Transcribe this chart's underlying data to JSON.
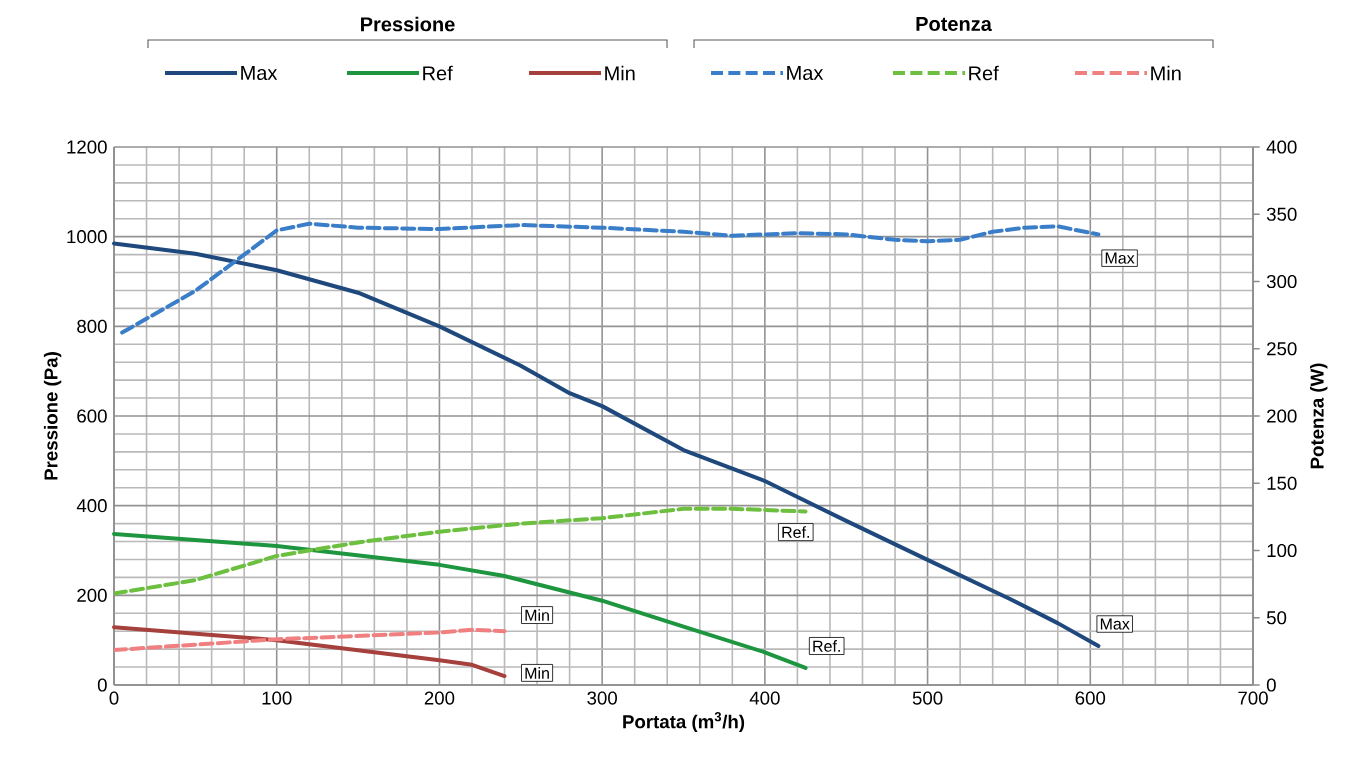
{
  "chart_data": {
    "type": "line",
    "xlabel": "Portata (m$^{3}$/h)",
    "ylabel": "Pressione (Pa)",
    "y2label": "Potenza (W)",
    "xlim": [
      0,
      700
    ],
    "xticks": [
      0,
      100,
      200,
      300,
      400,
      500,
      600,
      700
    ],
    "ylim": [
      0,
      1200
    ],
    "yticks": [
      0,
      200,
      400,
      600,
      800,
      1000,
      1200
    ],
    "y2lim": [
      0,
      400
    ],
    "y2ticks": [
      0,
      50,
      100,
      150,
      200,
      250,
      300,
      350,
      400
    ],
    "grid": true,
    "legend": "top",
    "marker": "none",
    "series": [
      {
        "name": "Max",
        "color": "#1f497d",
        "line_style": "solid",
        "x": [
          0,
          50,
          100,
          150,
          200,
          250,
          280,
          300,
          350,
          400,
          450,
          500,
          550,
          580,
          605
        ],
        "values": [
          985,
          962,
          925,
          875,
          800,
          712,
          651,
          622,
          524,
          455,
          366,
          279,
          193,
          138,
          87
        ]
      },
      {
        "name": "Ref",
        "color": "#1e9640",
        "line_style": "solid",
        "x": [
          0,
          100,
          200,
          240,
          300,
          350,
          400,
          425
        ],
        "values": [
          337,
          310,
          268,
          243,
          188,
          130,
          73,
          38
        ]
      },
      {
        "name": "Min",
        "color": "#a5403c",
        "line_style": "solid",
        "x": [
          0,
          100,
          200,
          220,
          240
        ],
        "values": [
          129,
          100,
          55,
          45,
          20
        ]
      },
      {
        "name": "Max",
        "color": "#3a7dc9",
        "line_style": "dashed",
        "axis": "y2",
        "x": [
          5,
          50,
          80,
          100,
          120,
          150,
          200,
          250,
          300,
          350,
          380,
          420,
          450,
          480,
          500,
          520,
          540,
          560,
          580,
          605
        ],
        "values": [
          262,
          293,
          320,
          338,
          343,
          340,
          339,
          342,
          340,
          337,
          334,
          336,
          335,
          331,
          330,
          331,
          337,
          340,
          341,
          335
        ]
      },
      {
        "name": "Ref",
        "color": "#6dbf3f",
        "line_style": "dashed",
        "axis": "y2",
        "x": [
          0,
          50,
          100,
          150,
          200,
          250,
          300,
          350,
          380,
          425
        ],
        "values": [
          68,
          78,
          96,
          106,
          114,
          120,
          124,
          131,
          131,
          129
        ]
      },
      {
        "name": "Min",
        "color": "#f08080",
        "line_style": "dashed",
        "axis": "y2",
        "x": [
          0,
          100,
          200,
          220,
          240
        ],
        "values": [
          26,
          34,
          39,
          41,
          40
        ]
      }
    ],
    "annotations": [
      "Pressione",
      "Potenza",
      {
        "text": "Max",
        "x": 618,
        "y": 952
      },
      {
        "text": "Ref.",
        "x": 419,
        "y": 341
      },
      {
        "text": "Min",
        "x": 260,
        "y": 156
      },
      {
        "text": "Max",
        "x": 615,
        "y": 136
      },
      {
        "text": "Ref.",
        "x": 438,
        "y": 87
      },
      {
        "text": "Min",
        "x": 260,
        "y": 27
      }
    ]
  }
}
